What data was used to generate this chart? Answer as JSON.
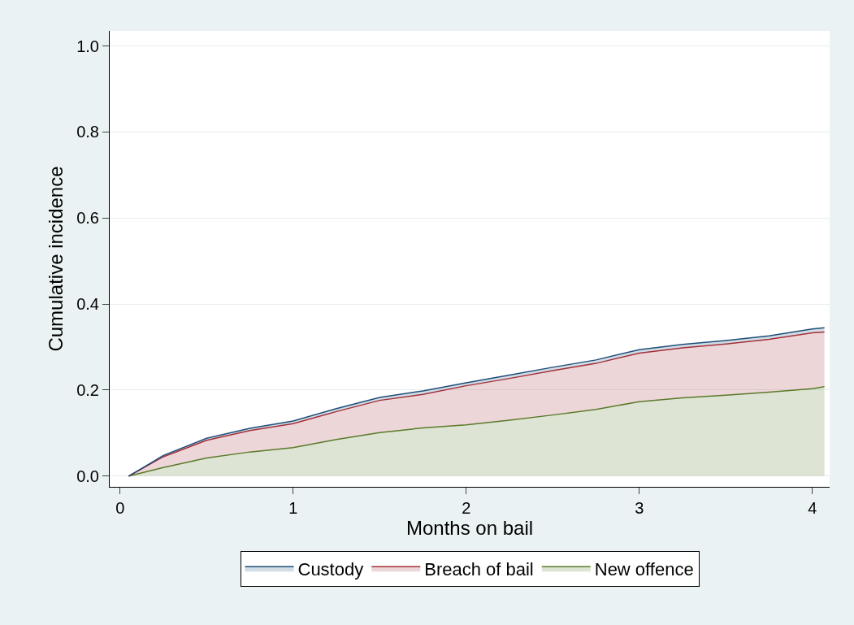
{
  "chart_data": {
    "type": "area",
    "stacked": true,
    "xlabel": "Months on bail",
    "ylabel": "Cumulative incidence",
    "x": [
      0.05,
      0.25,
      0.5,
      0.75,
      1,
      1.25,
      1.5,
      1.75,
      2,
      2.25,
      2.5,
      2.75,
      3,
      3.25,
      3.5,
      3.75,
      4,
      4.07
    ],
    "series": [
      {
        "name": "New offence",
        "color": "#5a7a2a",
        "values": [
          0,
          0.02,
          0.042,
          0.056,
          0.066,
          0.085,
          0.101,
          0.112,
          0.119,
          0.13,
          0.142,
          0.155,
          0.173,
          0.182,
          0.188,
          0.195,
          0.203,
          0.208
        ]
      },
      {
        "name": "Breach of bail",
        "color": "#a3303a",
        "values": [
          0,
          0.025,
          0.041,
          0.05,
          0.056,
          0.065,
          0.075,
          0.078,
          0.091,
          0.097,
          0.103,
          0.107,
          0.113,
          0.116,
          0.119,
          0.123,
          0.13,
          0.127
        ]
      },
      {
        "name": "Custody",
        "color": "#1f4e79",
        "values": [
          0,
          0.003,
          0.005,
          0.005,
          0.006,
          0.007,
          0.007,
          0.008,
          0.007,
          0.008,
          0.008,
          0.008,
          0.008,
          0.008,
          0.008,
          0.008,
          0.009,
          0.01
        ]
      }
    ],
    "xlim": [
      -0.06,
      4.1
    ],
    "xticks": [
      0,
      1,
      2,
      3,
      4
    ],
    "ylim": [
      -0.025,
      1.035
    ],
    "yticks": [
      {
        "value": 0,
        "label": "0.0"
      },
      {
        "value": 0.2,
        "label": "0.2"
      },
      {
        "value": 0.4,
        "label": "0.4"
      },
      {
        "value": 0.6,
        "label": "0.6"
      },
      {
        "value": 0.8,
        "label": "0.8"
      },
      {
        "value": 1,
        "label": "1.0"
      }
    ],
    "grid": "y",
    "legend": "bottom",
    "line_style": "solid",
    "marker": "none"
  }
}
